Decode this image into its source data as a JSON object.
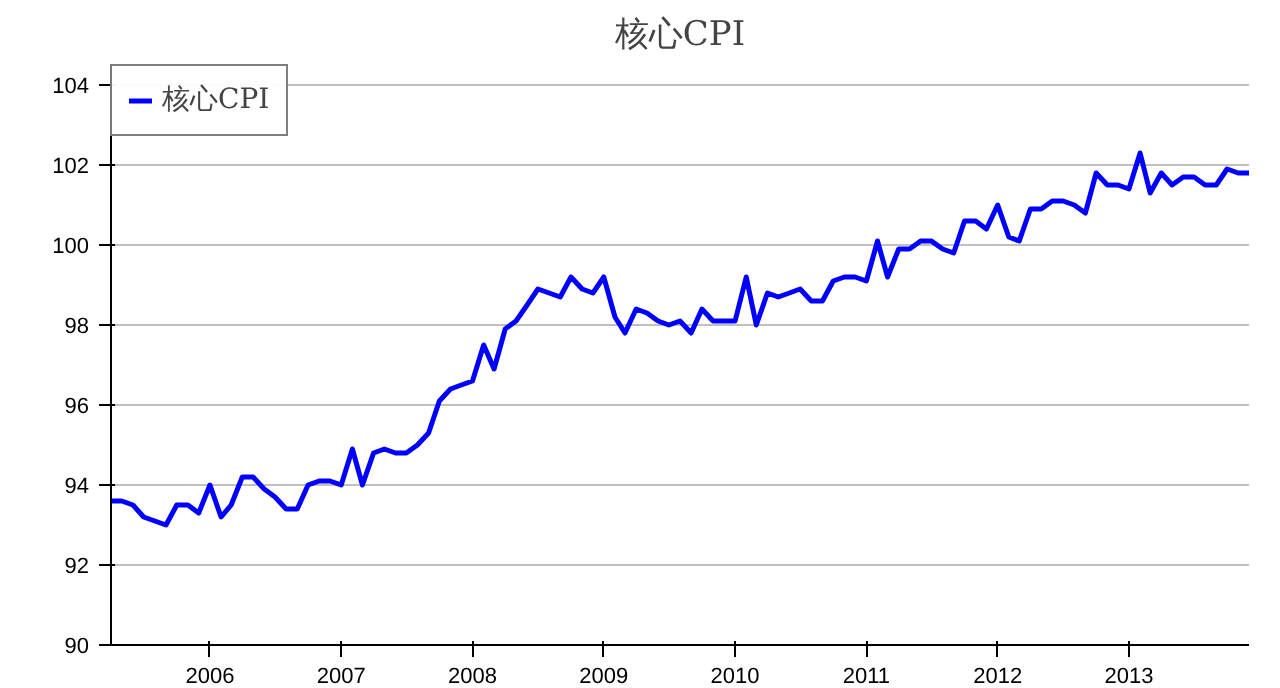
{
  "chart_data": {
    "type": "line",
    "title": "核心CPI",
    "xlim": [
      "2005-04",
      "2013-12"
    ],
    "xticks": [
      {
        "value": "2006",
        "label": "2006"
      },
      {
        "value": "2007",
        "label": "2007"
      },
      {
        "value": "2008",
        "label": "2008"
      },
      {
        "value": "2009",
        "label": "2009"
      },
      {
        "value": "2010",
        "label": "2010"
      },
      {
        "value": "2011",
        "label": "2011"
      },
      {
        "value": "2012",
        "label": "2012"
      },
      {
        "value": "2013",
        "label": "2013"
      }
    ],
    "ylim": [
      90,
      104.5
    ],
    "yticks": [
      90,
      92,
      94,
      96,
      98,
      100,
      102,
      104
    ],
    "grid": "y",
    "legend": "top left",
    "marker": "none",
    "line_style": "solid",
    "x": [
      "2005-04",
      "2005-05",
      "2005-06",
      "2005-07",
      "2005-08",
      "2005-09",
      "2005-10",
      "2005-11",
      "2005-12",
      "2006-01",
      "2006-02",
      "2006-03",
      "2006-04",
      "2006-05",
      "2006-06",
      "2006-07",
      "2006-08",
      "2006-09",
      "2006-10",
      "2006-11",
      "2006-12",
      "2007-01",
      "2007-02",
      "2007-03",
      "2007-04",
      "2007-05",
      "2007-06",
      "2007-07",
      "2007-08",
      "2007-09",
      "2007-10",
      "2007-11",
      "2007-12",
      "2008-01",
      "2008-02",
      "2008-03",
      "2008-04",
      "2008-05",
      "2008-06",
      "2008-07",
      "2008-08",
      "2008-09",
      "2008-10",
      "2008-11",
      "2008-12",
      "2009-01",
      "2009-02",
      "2009-03",
      "2009-04",
      "2009-05",
      "2009-06",
      "2009-07",
      "2009-08",
      "2009-09",
      "2009-10",
      "2009-11",
      "2009-12",
      "2010-01",
      "2010-02",
      "2010-03",
      "2010-04",
      "2010-05",
      "2010-06",
      "2010-07",
      "2010-08",
      "2010-09",
      "2010-10",
      "2010-11",
      "2010-12",
      "2011-01",
      "2011-02",
      "2011-03",
      "2011-04",
      "2011-05",
      "2011-06",
      "2011-07",
      "2011-08",
      "2011-09",
      "2011-10",
      "2011-11",
      "2011-12",
      "2012-01",
      "2012-02",
      "2012-03",
      "2012-04",
      "2012-05",
      "2012-06",
      "2012-07",
      "2012-08",
      "2012-09",
      "2012-10",
      "2012-11",
      "2012-12",
      "2013-01",
      "2013-02",
      "2013-03",
      "2013-04",
      "2013-05",
      "2013-06",
      "2013-07",
      "2013-08",
      "2013-09",
      "2013-10",
      "2013-11",
      "2013-12"
    ],
    "series": [
      {
        "name": "核心CPI",
        "color": "#0000ff",
        "values": [
          93.6,
          93.6,
          93.5,
          93.2,
          93.1,
          93.0,
          93.5,
          93.5,
          93.3,
          94.0,
          93.2,
          93.5,
          94.2,
          94.2,
          93.9,
          93.7,
          93.4,
          93.4,
          94.0,
          94.1,
          94.1,
          94.0,
          94.9,
          94.0,
          94.8,
          94.9,
          94.8,
          94.8,
          95.0,
          95.3,
          96.1,
          96.4,
          96.5,
          96.6,
          97.5,
          96.9,
          97.9,
          98.1,
          98.5,
          98.9,
          98.8,
          98.7,
          99.2,
          98.9,
          98.8,
          99.2,
          98.2,
          97.8,
          98.4,
          98.3,
          98.1,
          98.0,
          98.1,
          97.8,
          98.4,
          98.1,
          98.1,
          98.1,
          99.2,
          98.0,
          98.8,
          98.7,
          98.8,
          98.9,
          98.6,
          98.6,
          99.1,
          99.2,
          99.2,
          99.1,
          100.1,
          99.2,
          99.9,
          99.9,
          100.1,
          100.1,
          99.9,
          99.8,
          100.6,
          100.6,
          100.4,
          101.0,
          100.2,
          100.1,
          100.9,
          100.9,
          101.1,
          101.1,
          101.0,
          100.8,
          101.8,
          101.5,
          101.5,
          101.4,
          102.3,
          101.3,
          101.8,
          101.5,
          101.7,
          101.7,
          101.5,
          101.5,
          101.9,
          101.8,
          101.8
        ]
      }
    ]
  }
}
